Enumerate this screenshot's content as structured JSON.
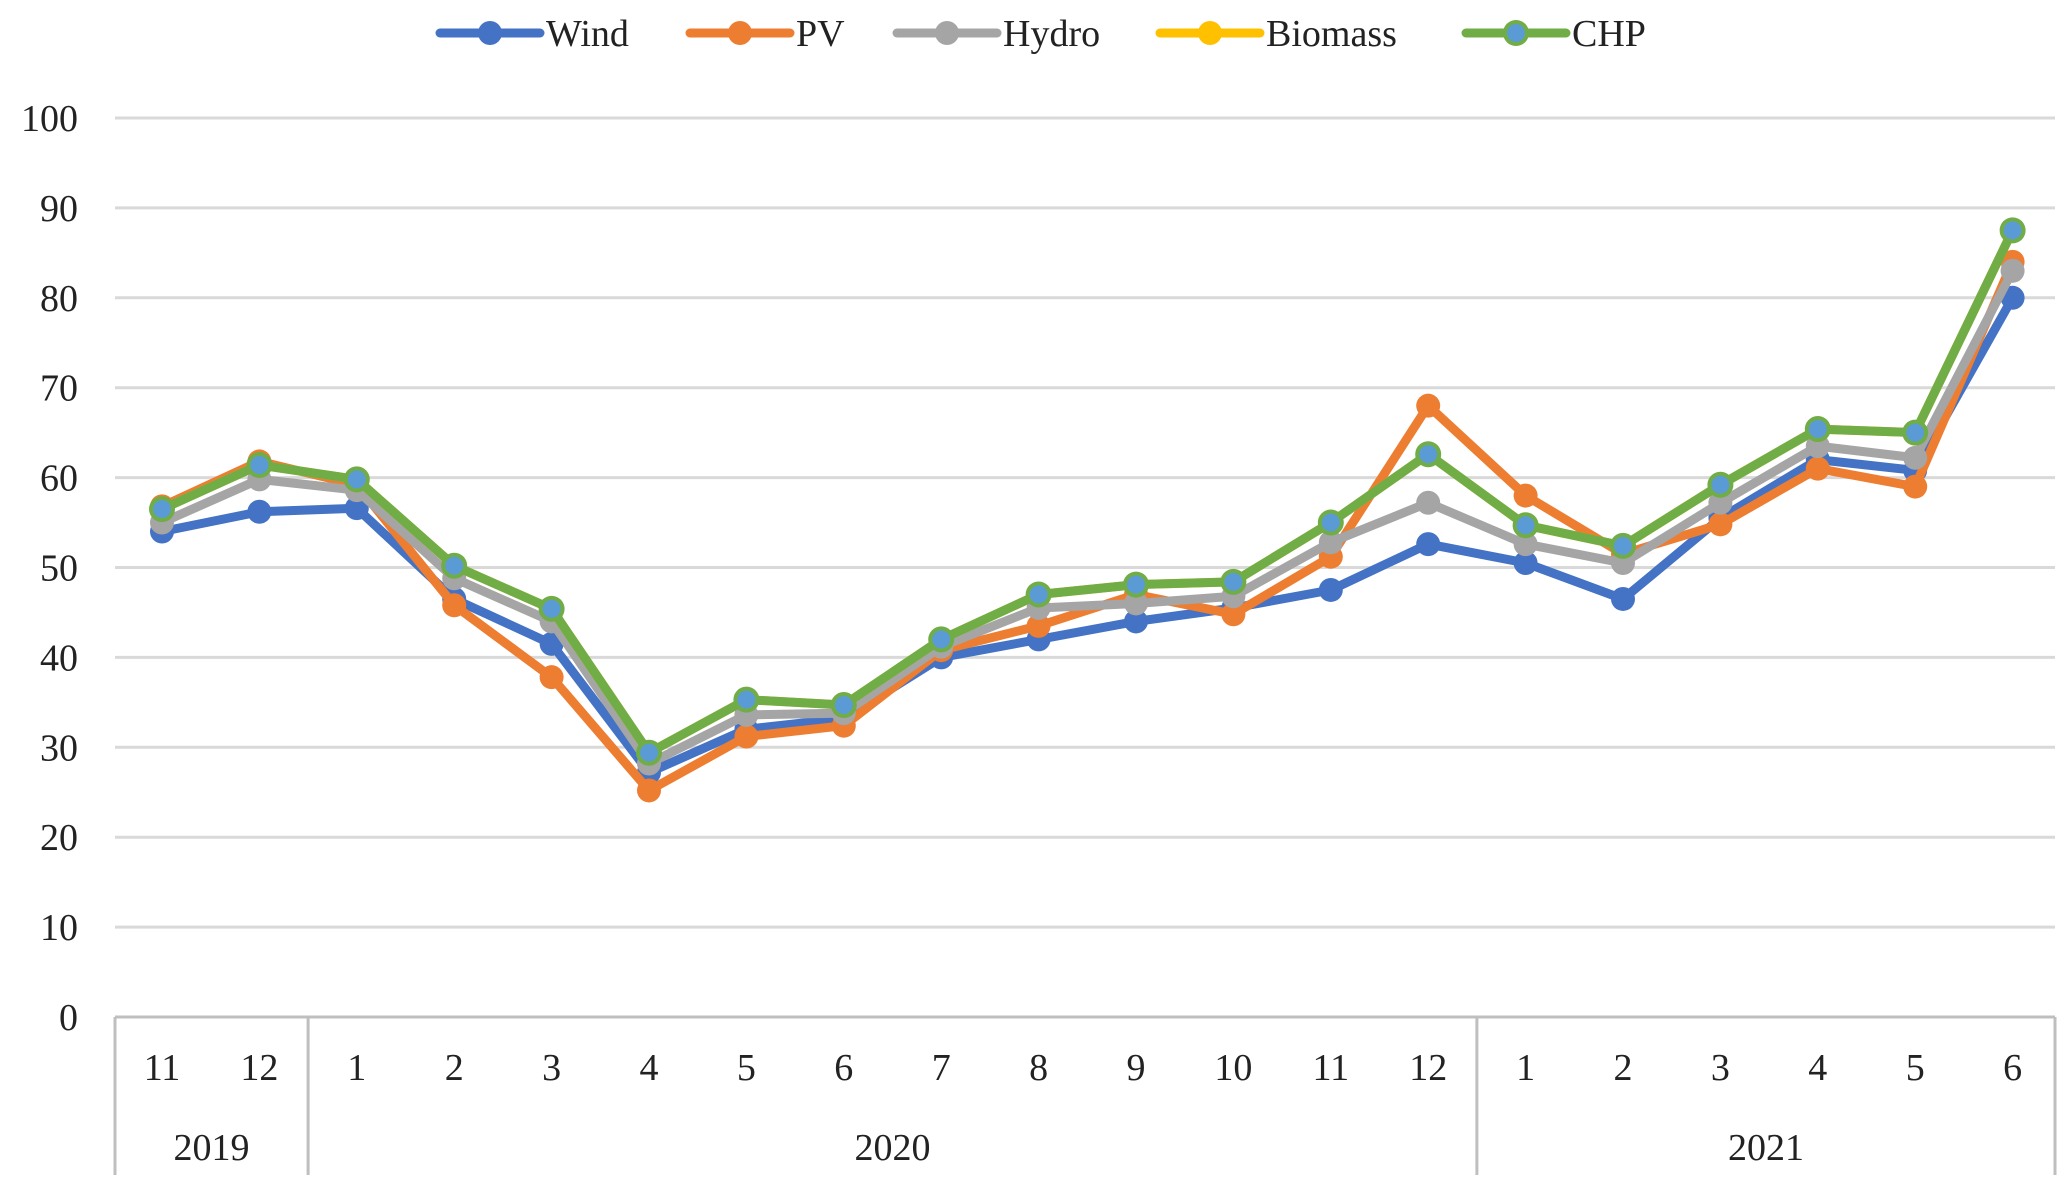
{
  "chart_data": {
    "type": "line",
    "title": "",
    "xlabel": "",
    "ylabel": "",
    "ylim": [
      0,
      100
    ],
    "yticks": [
      0,
      10,
      20,
      30,
      40,
      50,
      60,
      70,
      80,
      90,
      100
    ],
    "grid": true,
    "legend_position": "top",
    "categories": [
      "11",
      "12",
      "1",
      "2",
      "3",
      "4",
      "5",
      "6",
      "7",
      "8",
      "9",
      "10",
      "11",
      "12",
      "1",
      "2",
      "3",
      "4",
      "5",
      "6"
    ],
    "year_groups": [
      {
        "label": "2019",
        "start": 0,
        "end": 1
      },
      {
        "label": "2020",
        "start": 2,
        "end": 13
      },
      {
        "label": "2021",
        "start": 14,
        "end": 19
      }
    ],
    "series": [
      {
        "name": "Wind",
        "color": "#4472c4",
        "values": [
          54,
          56.2,
          56.6,
          46.5,
          41.5,
          27.2,
          32,
          33.2,
          40,
          42,
          44,
          45.5,
          47.5,
          52.6,
          50.5,
          46.5,
          55.5,
          62,
          60.8,
          80
        ]
      },
      {
        "name": "PV",
        "color": "#ed7d31",
        "values": [
          56.8,
          61.8,
          59.2,
          45.8,
          37.8,
          25.2,
          31.2,
          32.4,
          40.8,
          43.5,
          47,
          44.8,
          51.2,
          68,
          58,
          51.5,
          54.8,
          61,
          59,
          84
        ]
      },
      {
        "name": "Hydro",
        "color": "#a5a5a5",
        "values": [
          55,
          59.8,
          58.6,
          48.8,
          44,
          28.2,
          33.6,
          33.8,
          41.2,
          45.5,
          46,
          46.8,
          52.8,
          57.2,
          52.6,
          50.5,
          57.2,
          63.5,
          62.2,
          83
        ]
      },
      {
        "name": "Biomass",
        "color": "#ffc000",
        "values": [
          56.5,
          61.4,
          59.8,
          50.2,
          45.4,
          29.4,
          35.3,
          34.7,
          42,
          47,
          48.1,
          48.4,
          55,
          62.6,
          54.7,
          52.4,
          59.2,
          65.4,
          65,
          87.5
        ]
      },
      {
        "name": "CHP",
        "color": "#70ad47",
        "marker_color": "#5b9bd5",
        "values": [
          56.5,
          61.4,
          59.8,
          50.2,
          45.4,
          29.4,
          35.3,
          34.7,
          42,
          47,
          48.1,
          48.4,
          55,
          62.6,
          54.7,
          52.4,
          59.2,
          65.4,
          65,
          87.5
        ]
      }
    ]
  }
}
